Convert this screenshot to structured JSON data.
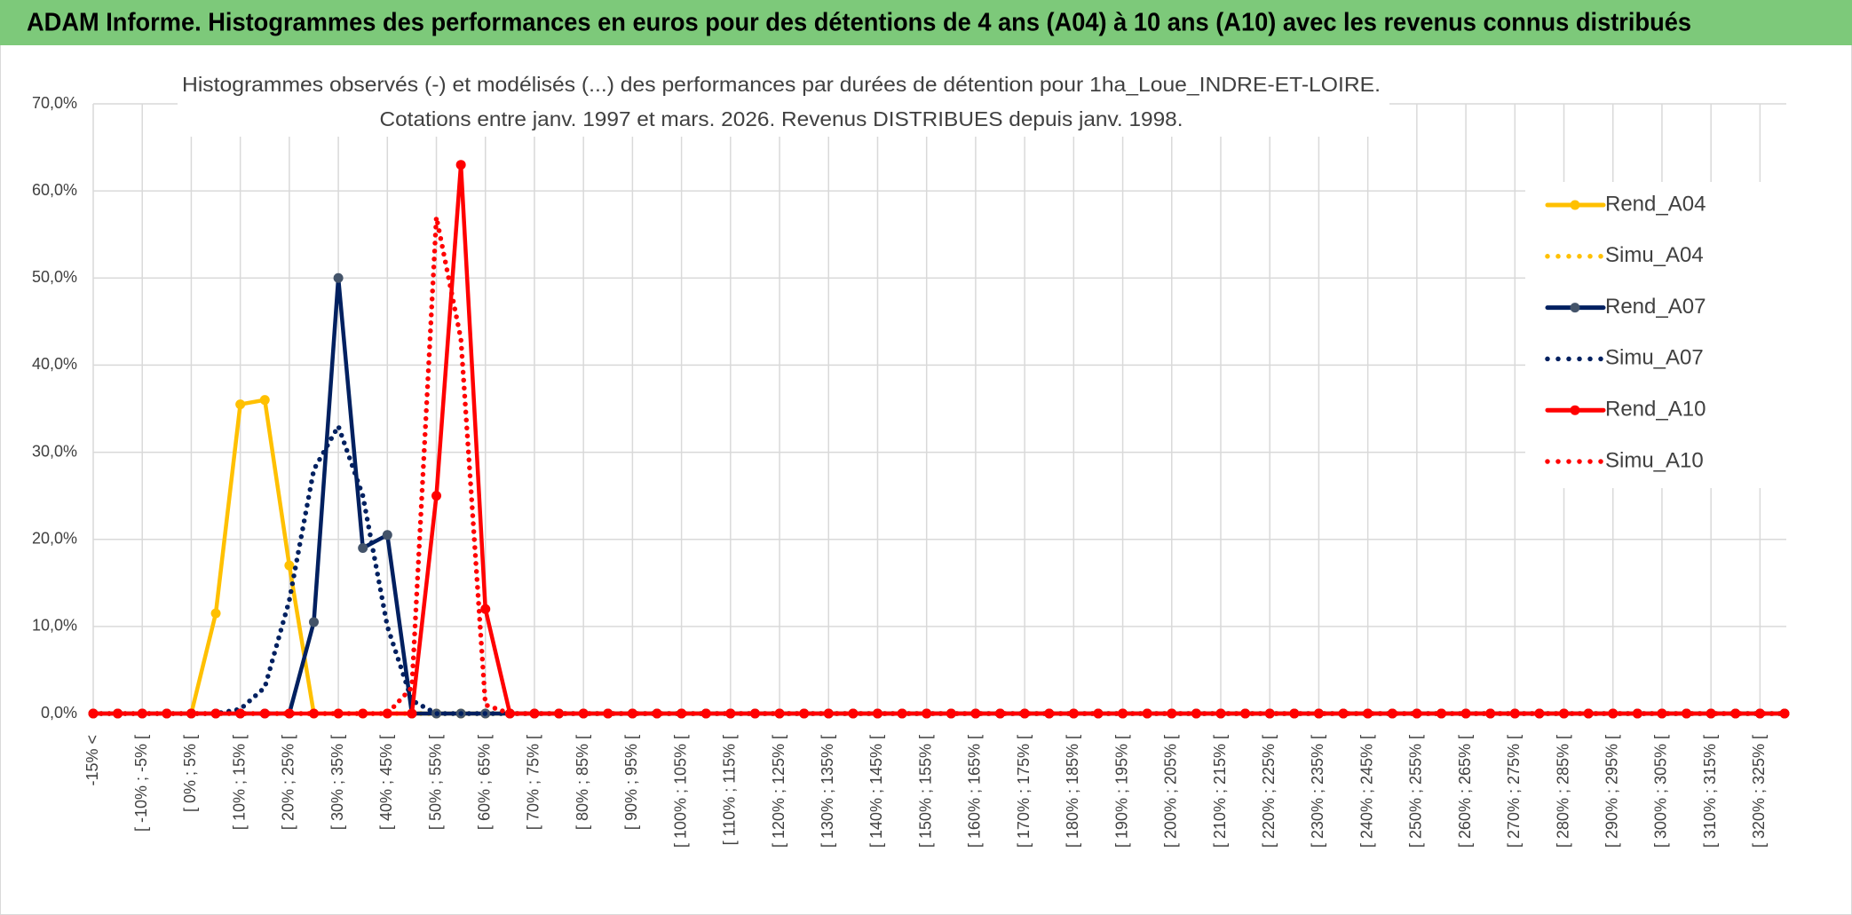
{
  "chart_data": {
    "type": "line",
    "header": "ADAM Informe. Histogrammes des performances en euros pour des détentions de 4 ans (A04) à 10 ans (A10) avec les revenus connus distribués",
    "title": [
      "Histogrammes observés (-) et modélisés (...) des performances par durées de détention pour 1ha_Loue_INDRE-ET-LOIRE.",
      "Cotations entre janv. 1997 et mars. 2026. Revenus DISTRIBUES depuis janv. 1998."
    ],
    "categories": [
      "-15% <",
      null,
      "[ -10% ; -5% [",
      null,
      "[ 0% ; 5% [",
      null,
      "[ 10% ; 15% [",
      null,
      "[ 20% ; 25% [",
      null,
      "[ 30% ; 35% [",
      null,
      "[ 40% ; 45% [",
      null,
      "[ 50% ; 55% [",
      null,
      "[ 60% ; 65% [",
      null,
      "[ 70% ; 75% [",
      null,
      "[ 80% ; 85% [",
      null,
      "[ 90% ; 95% [",
      null,
      "[ 100% ; 105% [",
      null,
      "[ 110% ; 115% [",
      null,
      "[ 120% ; 125% [",
      null,
      "[ 130% ; 135% [",
      null,
      "[ 140% ; 145% [",
      null,
      "[ 150% ; 155% [",
      null,
      "[ 160% ; 165% [",
      null,
      "[ 170% ; 175% [",
      null,
      "[ 180% ; 185% [",
      null,
      "[ 190% ; 195% [",
      null,
      "[ 200% ; 205% [",
      null,
      "[ 210% ; 215% [",
      null,
      "[ 220% ; 225% [",
      null,
      "[ 230% ; 235% [",
      null,
      "[ 240% ; 245% [",
      null,
      "[ 250% ; 255% [",
      null,
      "[ 260% ; 265% [",
      null,
      "[ 270% ; 275% [",
      null,
      "[ 280% ; 285% [",
      null,
      "[ 290% ; 295% [",
      null,
      "[ 300% ; 305% [",
      null,
      "[ 310% ; 315% [",
      null,
      "[ 320% ; 325% [",
      null
    ],
    "series": [
      {
        "name": "Rend_A04",
        "color": "#FFC000",
        "marker_color": "#FFC000",
        "dotted": false,
        "values": [
          0,
          0,
          0,
          0,
          0,
          11.5,
          35.5,
          36,
          17,
          0,
          0,
          0,
          0,
          0,
          0,
          0,
          0,
          0,
          0,
          0,
          0,
          0,
          0,
          0,
          0,
          0,
          0,
          0,
          0,
          0,
          0,
          0,
          0,
          0,
          0,
          0,
          0,
          0,
          0,
          0,
          0,
          0,
          0,
          0,
          0,
          0,
          0,
          0,
          0,
          0,
          0,
          0,
          0,
          0,
          0,
          0,
          0,
          0,
          0,
          0,
          0,
          0,
          0,
          0,
          0,
          0,
          0,
          0,
          0,
          0
        ]
      },
      {
        "name": "Simu_A04",
        "color": "#FFC000",
        "dotted": true,
        "values": [
          0,
          0,
          0,
          0,
          0,
          0,
          0,
          0,
          0,
          0,
          0,
          0,
          0,
          0,
          0,
          0,
          0,
          0,
          0,
          0,
          0,
          0,
          0,
          0,
          0,
          0,
          0,
          0,
          0,
          0,
          0,
          0,
          0,
          0,
          0,
          0,
          0,
          0,
          0,
          0,
          0,
          0,
          0,
          0,
          0,
          0,
          0,
          0,
          0,
          0,
          0,
          0,
          0,
          0,
          0,
          0,
          0,
          0,
          0,
          0,
          0,
          0,
          0,
          0,
          0,
          0,
          0,
          0,
          0,
          0
        ]
      },
      {
        "name": "Rend_A07",
        "color": "#002060",
        "marker_color": "#44546A",
        "dotted": false,
        "values": [
          0,
          0,
          0,
          0,
          0,
          0,
          0,
          0,
          0,
          10.5,
          50,
          19,
          20.5,
          0,
          0,
          0,
          0,
          0,
          0,
          0,
          0,
          0,
          0,
          0,
          0,
          0,
          0,
          0,
          0,
          0,
          0,
          0,
          0,
          0,
          0,
          0,
          0,
          0,
          0,
          0,
          0,
          0,
          0,
          0,
          0,
          0,
          0,
          0,
          0,
          0,
          0,
          0,
          0,
          0,
          0,
          0,
          0,
          0,
          0,
          0,
          0,
          0,
          0,
          0,
          0,
          0,
          0,
          0,
          0,
          0
        ]
      },
      {
        "name": "Simu_A07",
        "color": "#002060",
        "dotted": true,
        "values": [
          0,
          0,
          0,
          0,
          0,
          0,
          0.5,
          3,
          13,
          28,
          33,
          25,
          10,
          1.5,
          0,
          0,
          0,
          0,
          0,
          0,
          0,
          0,
          0,
          0,
          0,
          0,
          0,
          0,
          0,
          0,
          0,
          0,
          0,
          0,
          0,
          0,
          0,
          0,
          0,
          0,
          0,
          0,
          0,
          0,
          0,
          0,
          0,
          0,
          0,
          0,
          0,
          0,
          0,
          0,
          0,
          0,
          0,
          0,
          0,
          0,
          0,
          0,
          0,
          0,
          0,
          0,
          0,
          0,
          0,
          0
        ]
      },
      {
        "name": "Rend_A10",
        "color": "#FF0000",
        "marker_color": "#FF0000",
        "dotted": false,
        "values": [
          0,
          0,
          0,
          0,
          0,
          0,
          0,
          0,
          0,
          0,
          0,
          0,
          0,
          0,
          25,
          63,
          12,
          0,
          0,
          0,
          0,
          0,
          0,
          0,
          0,
          0,
          0,
          0,
          0,
          0,
          0,
          0,
          0,
          0,
          0,
          0,
          0,
          0,
          0,
          0,
          0,
          0,
          0,
          0,
          0,
          0,
          0,
          0,
          0,
          0,
          0,
          0,
          0,
          0,
          0,
          0,
          0,
          0,
          0,
          0,
          0,
          0,
          0,
          0,
          0,
          0,
          0,
          0,
          0,
          0
        ]
      },
      {
        "name": "Simu_A10",
        "color": "#FF0000",
        "dotted": true,
        "values": [
          0,
          0,
          0,
          0,
          0,
          0,
          0,
          0,
          0,
          0,
          0,
          0,
          0,
          3,
          57,
          43,
          1,
          0,
          0,
          0,
          0,
          0,
          0,
          0,
          0,
          0,
          0,
          0,
          0,
          0,
          0,
          0,
          0,
          0,
          0,
          0,
          0,
          0,
          0,
          0,
          0,
          0,
          0,
          0,
          0,
          0,
          0,
          0,
          0,
          0,
          0,
          0,
          0,
          0,
          0,
          0,
          0,
          0,
          0,
          0,
          0,
          0,
          0,
          0,
          0,
          0,
          0,
          0,
          0,
          0
        ]
      }
    ],
    "ylim": [
      0,
      70
    ],
    "yticks": [
      {
        "value": 0,
        "label": "0,0%"
      },
      {
        "value": 10,
        "label": "10,0%"
      },
      {
        "value": 20,
        "label": "20,0%"
      },
      {
        "value": 30,
        "label": "30,0%"
      },
      {
        "value": 40,
        "label": "40,0%"
      },
      {
        "value": 50,
        "label": "50,0%"
      },
      {
        "value": 60,
        "label": "60,0%"
      },
      {
        "value": 70,
        "label": "70,0%"
      }
    ],
    "grid": true,
    "legend": "right"
  }
}
